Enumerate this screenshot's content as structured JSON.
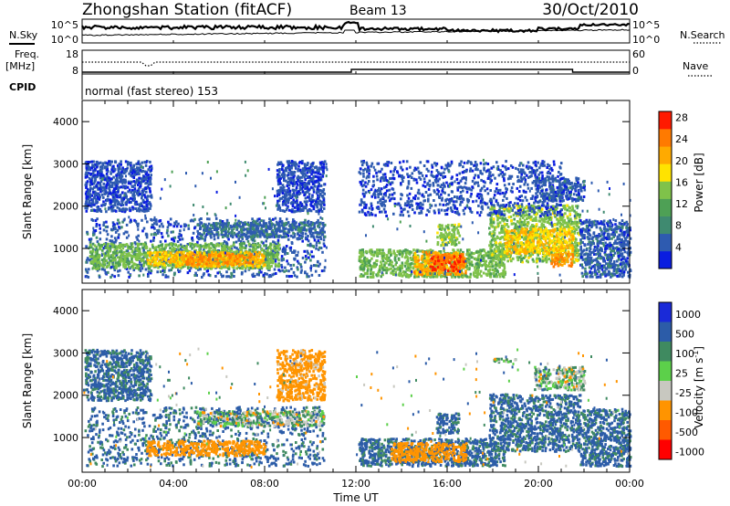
{
  "header": {
    "station": "Zhongshan Station (fitACF)",
    "beam": "Beam 13",
    "date": "30/Oct/2010"
  },
  "strip_labels": {
    "nsky": "N.Sky",
    "nsearch": "N.Search",
    "freq_line1": "Freq.",
    "freq_line2": "[MHz]",
    "nave": "Nave",
    "cpid": "CPID",
    "cpid_value": "normal (fast stereo) 153"
  },
  "strip_ticks": {
    "noise_left": [
      "10^5",
      "10^0"
    ],
    "noise_right": [
      "10^5",
      "10^0"
    ],
    "freq_left": [
      "18",
      "8"
    ],
    "nave_right": [
      "60",
      "0"
    ]
  },
  "colors": {
    "power": [
      "#0a1de0",
      "#2e5bb0",
      "#3f8a70",
      "#4ea055",
      "#7fc24a",
      "#ffe300",
      "#ffaa00",
      "#ff7a00",
      "#ff1a00"
    ],
    "velocity": [
      "#ff0000",
      "#ff5a00",
      "#ff9400",
      "#c8c8c0",
      "#5cd04a",
      "#3f8a60",
      "#2c5ca8",
      "#1a2ad8"
    ]
  },
  "chart_data": [
    {
      "type": "heatmap",
      "name": "power",
      "ylabel": "Slant Range [km]",
      "ylim": [
        180,
        4500
      ],
      "yticks": [
        "1000",
        "2000",
        "3000",
        "4000"
      ],
      "xlim": [
        0,
        24
      ],
      "colorbar": {
        "label": "Power [dB]",
        "ticks": [
          "4",
          "8",
          "12",
          "16",
          "20",
          "24",
          "28"
        ]
      },
      "regions": [
        {
          "t0": 0.1,
          "t1": 10.6,
          "r0": 350,
          "r1": 1750,
          "val": 6
        },
        {
          "t0": 0.3,
          "t1": 8.6,
          "r0": 550,
          "r1": 1150,
          "val": 13
        },
        {
          "t0": 2.8,
          "t1": 8.0,
          "r0": 600,
          "r1": 950,
          "val": 21
        },
        {
          "t0": 4.5,
          "t1": 7.5,
          "r0": 650,
          "r1": 900,
          "val": 25
        },
        {
          "t0": 5.0,
          "t1": 10.6,
          "r0": 1300,
          "r1": 1650,
          "val": 7
        },
        {
          "t0": 0.1,
          "t1": 3.0,
          "r0": 1900,
          "r1": 3100,
          "val": 5
        },
        {
          "t0": 8.5,
          "t1": 10.6,
          "r0": 1900,
          "r1": 3100,
          "val": 5
        },
        {
          "t0": 12.1,
          "t1": 18.5,
          "r0": 350,
          "r1": 1000,
          "val": 13
        },
        {
          "t0": 14.5,
          "t1": 16.8,
          "r0": 400,
          "r1": 950,
          "val": 22
        },
        {
          "t0": 15.2,
          "t1": 16.7,
          "r0": 500,
          "r1": 900,
          "val": 28
        },
        {
          "t0": 15.5,
          "t1": 16.5,
          "r0": 1100,
          "r1": 1600,
          "val": 14
        },
        {
          "t0": 17.8,
          "t1": 21.8,
          "r0": 700,
          "r1": 2050,
          "val": 14
        },
        {
          "t0": 18.5,
          "t1": 21.5,
          "r0": 900,
          "r1": 1500,
          "val": 20
        },
        {
          "t0": 20.5,
          "t1": 21.5,
          "r0": 600,
          "r1": 900,
          "val": 25
        },
        {
          "t0": 19.8,
          "t1": 22.0,
          "r0": 2150,
          "r1": 2700,
          "val": 6
        },
        {
          "t0": 21.8,
          "t1": 24.0,
          "r0": 350,
          "r1": 1700,
          "val": 6
        },
        {
          "t0": 12.1,
          "t1": 21.0,
          "r0": 1800,
          "r1": 3100,
          "val": 5
        }
      ]
    },
    {
      "type": "heatmap",
      "name": "velocity",
      "ylabel": "Slant Range [km]",
      "ylim": [
        180,
        4500
      ],
      "yticks": [
        "1000",
        "2000",
        "3000",
        "4000"
      ],
      "xlim": [
        0,
        24
      ],
      "xticks": [
        "00:00",
        "04:00",
        "08:00",
        "12:00",
        "16:00",
        "20:00",
        "00:00"
      ],
      "xlabel": "Time UT",
      "colorbar": {
        "label": "Velocity [m s",
        "label_sup": "-1",
        "label_end": "]",
        "ticks": [
          "1000",
          "500",
          "100",
          "25",
          "-25",
          "-100",
          "-500",
          "-1000"
        ]
      },
      "regions": [
        {
          "t0": 0.1,
          "t1": 10.6,
          "r0": 350,
          "r1": 1750,
          "val": 150
        },
        {
          "t0": 2.8,
          "t1": 8.0,
          "r0": 600,
          "r1": 950,
          "val": -300
        },
        {
          "t0": 5.0,
          "t1": 10.6,
          "r0": 1300,
          "r1": 1650,
          "val": 0
        },
        {
          "t0": 0.1,
          "t1": 3.0,
          "r0": 1900,
          "r1": 3100,
          "val": 150
        },
        {
          "t0": 8.5,
          "t1": 10.6,
          "r0": 1900,
          "r1": 3100,
          "val": -200
        },
        {
          "t0": 12.1,
          "t1": 18.5,
          "r0": 350,
          "r1": 1000,
          "val": 150
        },
        {
          "t0": 13.5,
          "t1": 16.8,
          "r0": 450,
          "r1": 900,
          "val": -300
        },
        {
          "t0": 15.5,
          "t1": 16.5,
          "r0": 1100,
          "r1": 1600,
          "val": 150
        },
        {
          "t0": 17.8,
          "t1": 21.8,
          "r0": 700,
          "r1": 2050,
          "val": 150
        },
        {
          "t0": 19.8,
          "t1": 22.0,
          "r0": 2150,
          "r1": 2700,
          "val": 0
        },
        {
          "t0": 21.8,
          "t1": 24.0,
          "r0": 350,
          "r1": 1700,
          "val": 150
        },
        {
          "t0": 18.0,
          "t1": 19.0,
          "r0": 2800,
          "r1": 2900,
          "val": 0
        }
      ]
    }
  ]
}
